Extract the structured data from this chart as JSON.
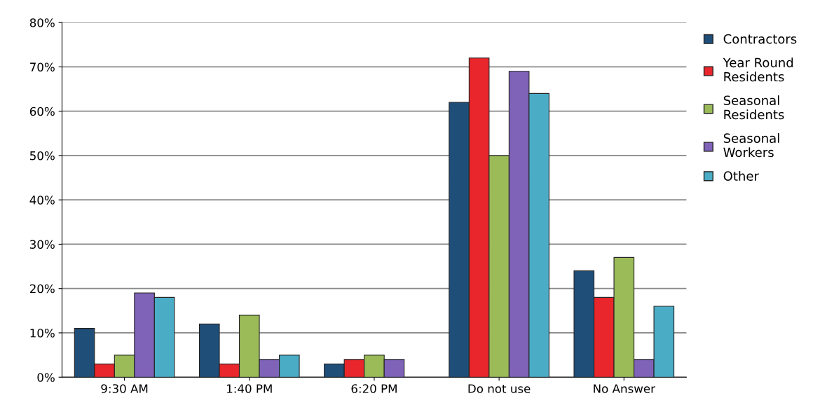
{
  "chart_data": {
    "type": "bar",
    "categories": [
      "9:30 AM",
      "1:40 PM",
      "6:20 PM",
      "Do not use",
      "No Answer"
    ],
    "series": [
      {
        "name": "Contractors",
        "color": "#1f4e79",
        "values": [
          11,
          12,
          3,
          62,
          24
        ]
      },
      {
        "name": "Year Round Residents",
        "color": "#e8262b",
        "values": [
          3,
          3,
          4,
          72,
          18
        ]
      },
      {
        "name": "Seasonal Residents",
        "color": "#9bbb59",
        "values": [
          5,
          14,
          5,
          50,
          27
        ]
      },
      {
        "name": "Seasonal Workers",
        "color": "#7f63b8",
        "values": [
          19,
          4,
          4,
          69,
          4
        ]
      },
      {
        "name": "Other",
        "color": "#4bacc6",
        "values": [
          18,
          5,
          null,
          64,
          16
        ]
      }
    ],
    "ylim": [
      0,
      80
    ],
    "yticks": [
      {
        "value": 0,
        "label": "0%"
      },
      {
        "value": 10,
        "label": "10%"
      },
      {
        "value": 20,
        "label": "20%"
      },
      {
        "value": 30,
        "label": "30%"
      },
      {
        "value": 40,
        "label": "40%"
      },
      {
        "value": 50,
        "label": "50%"
      },
      {
        "value": 60,
        "label": "60%"
      },
      {
        "value": 70,
        "label": "70%"
      },
      {
        "value": 80,
        "label": "80%"
      }
    ],
    "grid": "y",
    "legend": "right"
  }
}
